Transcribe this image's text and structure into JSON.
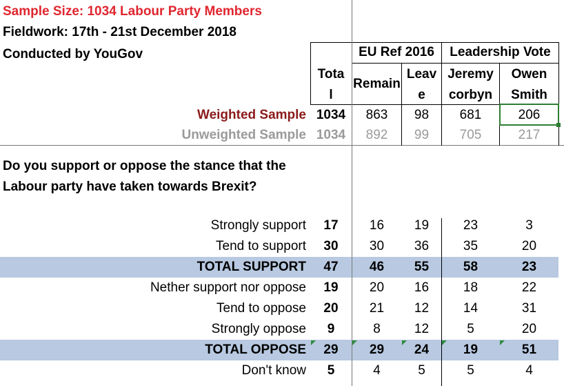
{
  "header": {
    "sample_size": "Sample Size: 1034 Labour Party Members",
    "fieldwork": "Fieldwork: 17th - 21st December 2018",
    "conducted_by": "Conducted by YouGov"
  },
  "column_groups": {
    "eu_ref": "EU Ref 2016",
    "leadership": "Leadership Vote"
  },
  "columns": {
    "total_line1": "Tota",
    "total_line2": "l",
    "remain": "Remain",
    "leave_line1": "Leav",
    "leave_line2": "e",
    "jeremy_line1": "Jeremy",
    "jeremy_line2": "corbyn",
    "owen_line1": "Owen",
    "owen_line2": "Smith"
  },
  "samples": {
    "weighted_label": "Weighted Sample",
    "weighted": [
      "1034",
      "863",
      "98",
      "681",
      "206"
    ],
    "unweighted_label": "Unweighted Sample",
    "unweighted": [
      "1034",
      "892",
      "99",
      "705",
      "217"
    ]
  },
  "question": "Do you support or oppose the stance that the Labour party have taken towards Brexit?",
  "rows": [
    {
      "label": "Strongly support",
      "values": [
        "17",
        "16",
        "19",
        "23",
        "3"
      ]
    },
    {
      "label": "Tend to support",
      "values": [
        "30",
        "30",
        "36",
        "35",
        "20"
      ]
    },
    {
      "label": "TOTAL SUPPORT",
      "values": [
        "47",
        "46",
        "55",
        "58",
        "23"
      ]
    },
    {
      "label": "Nether support nor oppose",
      "values": [
        "19",
        "20",
        "16",
        "18",
        "22"
      ]
    },
    {
      "label": "Tend to oppose",
      "values": [
        "20",
        "21",
        "12",
        "14",
        "31"
      ]
    },
    {
      "label": "Strongly oppose",
      "values": [
        "9",
        "8",
        "12",
        "5",
        "20"
      ]
    },
    {
      "label": "TOTAL OPPOSE",
      "values": [
        "29",
        "29",
        "24",
        "19",
        "51"
      ]
    },
    {
      "label": "Don't know",
      "values": [
        "5",
        "4",
        "5",
        "5",
        "4"
      ]
    }
  ],
  "colors": {
    "title_red": "#e0262f",
    "weighted_label": "#8b1a1a",
    "unweighted_gray": "#9a9a9a",
    "total_band": "#b8c9e1",
    "selection_green": "#2e7d32"
  }
}
